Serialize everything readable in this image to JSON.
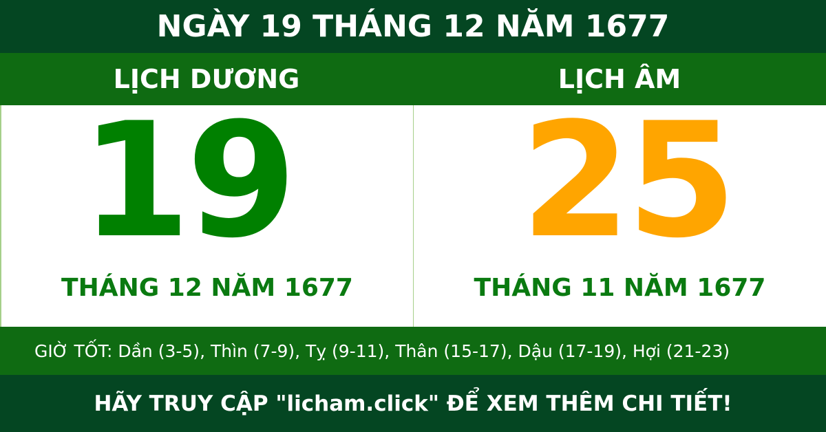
{
  "title": "NGÀY 19 THÁNG 12 NĂM 1677",
  "solar": {
    "label": "LỊCH DƯƠNG",
    "day": "19",
    "month_year": "THÁNG 12 NĂM 1677"
  },
  "lunar": {
    "label": "LỊCH ÂM",
    "day": "25",
    "month_year": "THÁNG 11 NĂM 1677"
  },
  "good_hours": "GIỜ TỐT: Dần (3-5), Thìn (7-9), Tỵ (9-11), Thân (15-17), Dậu (17-19), Hợi (21-23)",
  "footer": "HÃY TRUY CẬP \"licham.click\" ĐỂ XEM THÊM CHI TIẾT!",
  "colors": {
    "dark_green": "#044622",
    "green": "#0f6b12",
    "solar_day": "#008000",
    "lunar_day": "#ffa500"
  }
}
